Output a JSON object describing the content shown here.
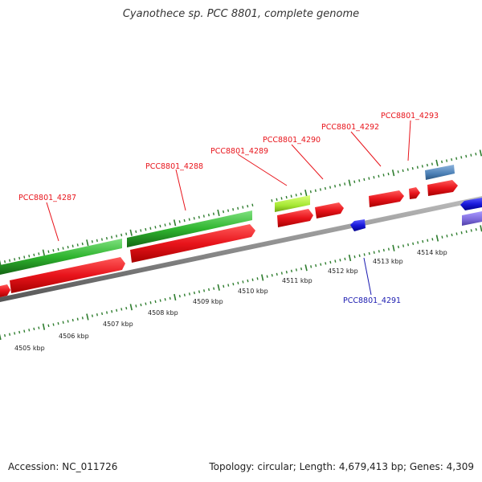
{
  "title": "Cyanothece sp. PCC 8801, complete genome",
  "footer": {
    "accession": "Accession: NC_011726",
    "summary": "Topology: circular; Length: 4,679,413 bp; Genes: 4,309"
  },
  "colors": {
    "forward_cds": "#e8141b",
    "reverse_cds": "#1a1adb",
    "rna_green": "#2fb52f",
    "highlight_green": "#a6e834",
    "steel_blue": "#4a7fb5",
    "lavender": "#7b68d8",
    "backbone": "#8c8c8c",
    "tick_color": "#2e7d2e",
    "label_forward": "#e8141b",
    "label_reverse": "#1a1ab0"
  },
  "scale_labels": [
    "4505 kbp",
    "4506 kbp",
    "4507 kbp",
    "4508 kbp",
    "4509 kbp",
    "4510 kbp",
    "4511 kbp",
    "4512 kbp",
    "4513 kbp",
    "4514 kbp"
  ],
  "gene_labels": [
    {
      "text": "PCC8801_4287",
      "strand": "forward"
    },
    {
      "text": "PCC8801_4288",
      "strand": "forward"
    },
    {
      "text": "PCC8801_4289",
      "strand": "forward"
    },
    {
      "text": "PCC8801_4290",
      "strand": "forward"
    },
    {
      "text": "PCC8801_4292",
      "strand": "forward"
    },
    {
      "text": "PCC8801_4293",
      "strand": "forward"
    },
    {
      "text": "PCC8801_4291",
      "strand": "reverse"
    }
  ]
}
